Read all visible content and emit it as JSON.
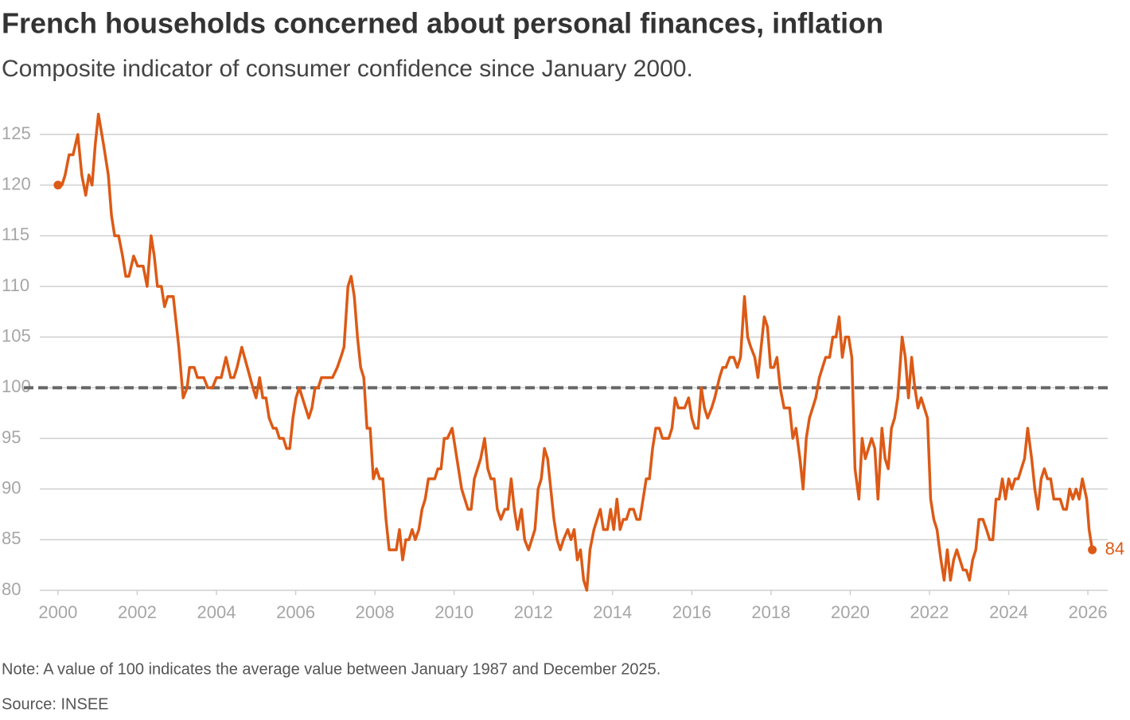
{
  "chart_data": {
    "type": "line",
    "title": "French households concerned about personal finances, inflation",
    "subtitle": "Composite indicator of consumer confidence since January 2000.",
    "note": "Note: A value of 100 indicates the average value between January 1987 and December 2025.",
    "source": "Source: INSEE",
    "reference_line": 100,
    "xlim": [
      1999.54,
      2026.5
    ],
    "xticks": [
      2000,
      2002,
      2004,
      2006,
      2008,
      2010,
      2012,
      2014,
      2016,
      2018,
      2020,
      2022,
      2024,
      2026
    ],
    "ylim": [
      80,
      125
    ],
    "yticks": [
      80,
      85,
      90,
      95,
      100,
      105,
      110,
      115,
      120,
      125
    ],
    "grid": true,
    "x": [
      2000,
      2000.1,
      2000.18,
      2000.28,
      2000.38,
      2000.5,
      2000.6,
      2000.7,
      2000.78,
      2000.86,
      2000.94,
      2001.02,
      2001.15,
      2001.27,
      2001.35,
      2001.43,
      2001.53,
      2001.63,
      2001.71,
      2001.79,
      2001.91,
      2002.01,
      2002.15,
      2002.25,
      2002.35,
      2002.43,
      2002.51,
      2002.61,
      2002.69,
      2002.77,
      2002.91,
      2003.05,
      2003.16,
      2003.26,
      2003.32,
      2003.44,
      2003.52,
      2003.68,
      2003.78,
      2003.9,
      2004,
      2004.12,
      2004.24,
      2004.36,
      2004.44,
      2004.52,
      2004.64,
      2004.78,
      2004.92,
      2005,
      2005.09,
      2005.17,
      2005.25,
      2005.33,
      2005.43,
      2005.51,
      2005.59,
      2005.69,
      2005.77,
      2005.85,
      2005.93,
      2006.01,
      2006.09,
      2006.17,
      2006.25,
      2006.33,
      2006.41,
      2006.49,
      2006.57,
      2006.65,
      2006.77,
      2006.93,
      2007.05,
      2007.14,
      2007.22,
      2007.32,
      2007.4,
      2007.48,
      2007.56,
      2007.64,
      2007.72,
      2007.8,
      2007.88,
      2007.96,
      2008.04,
      2008.12,
      2008.2,
      2008.28,
      2008.36,
      2008.54,
      2008.62,
      2008.7,
      2008.78,
      2008.86,
      2008.94,
      2009.02,
      2009.11,
      2009.19,
      2009.27,
      2009.35,
      2009.51,
      2009.59,
      2009.67,
      2009.75,
      2009.83,
      2009.95,
      2010.03,
      2010.11,
      2010.19,
      2010.27,
      2010.35,
      2010.43,
      2010.51,
      2010.59,
      2010.67,
      2010.77,
      2010.85,
      2010.93,
      2011.01,
      2011.09,
      2011.18,
      2011.28,
      2011.36,
      2011.44,
      2011.52,
      2011.6,
      2011.7,
      2011.78,
      2011.88,
      2011.96,
      2012.04,
      2012.12,
      2012.2,
      2012.28,
      2012.36,
      2012.44,
      2012.52,
      2012.6,
      2012.68,
      2012.76,
      2012.87,
      2012.95,
      2013.03,
      2013.11,
      2013.19,
      2013.27,
      2013.35,
      2013.43,
      2013.53,
      2013.61,
      2013.69,
      2013.77,
      2013.87,
      2013.95,
      2014.03,
      2014.11,
      2014.19,
      2014.27,
      2014.35,
      2014.43,
      2014.53,
      2014.61,
      2014.69,
      2014.77,
      2014.85,
      2014.93,
      2015.01,
      2015.09,
      2015.18,
      2015.26,
      2015.42,
      2015.5,
      2015.58,
      2015.66,
      2015.82,
      2015.92,
      2016,
      2016.08,
      2016.16,
      2016.24,
      2016.32,
      2016.4,
      2016.5,
      2016.58,
      2016.7,
      2016.78,
      2016.86,
      2016.96,
      2017.06,
      2017.15,
      2017.23,
      2017.33,
      2017.41,
      2017.49,
      2017.59,
      2017.67,
      2017.75,
      2017.83,
      2017.91,
      2017.99,
      2018.07,
      2018.15,
      2018.23,
      2018.33,
      2018.47,
      2018.55,
      2018.63,
      2018.73,
      2018.81,
      2018.89,
      2018.97,
      2019.05,
      2019.13,
      2019.22,
      2019.3,
      2019.38,
      2019.48,
      2019.56,
      2019.64,
      2019.72,
      2019.8,
      2019.88,
      2019.96,
      2020.04,
      2020.12,
      2020.22,
      2020.3,
      2020.38,
      2020.46,
      2020.54,
      2020.62,
      2020.7,
      2020.8,
      2020.88,
      2020.96,
      2021.04,
      2021.12,
      2021.2,
      2021.31,
      2021.39,
      2021.47,
      2021.55,
      2021.63,
      2021.71,
      2021.79,
      2021.87,
      2021.95,
      2022.03,
      2022.11,
      2022.19,
      2022.29,
      2022.37,
      2022.45,
      2022.53,
      2022.61,
      2022.69,
      2022.77,
      2022.85,
      2022.93,
      2023.01,
      2023.09,
      2023.17,
      2023.25,
      2023.35,
      2023.44,
      2023.52,
      2023.6,
      2023.68,
      2023.76,
      2023.84,
      2023.92,
      2024,
      2024.08,
      2024.16,
      2024.24,
      2024.32,
      2024.4,
      2024.48,
      2024.58,
      2024.66,
      2024.74,
      2024.82,
      2024.9,
      2024.98,
      2025.06,
      2025.14,
      2025.3,
      2025.38,
      2025.46,
      2025.54,
      2025.62,
      2025.7,
      2025.78,
      2025.86,
      2025.97,
      2026.03,
      2026.11
    ],
    "series": [
      {
        "color": "#dc5a16",
        "values": [
          120,
          120,
          121,
          123,
          123,
          125,
          121,
          119,
          121,
          120,
          124,
          127,
          124,
          121,
          117,
          115,
          115,
          113,
          111,
          111,
          113,
          112,
          112,
          110,
          115,
          113,
          110,
          110,
          108,
          109,
          109,
          104,
          99,
          100,
          102,
          102,
          101,
          101,
          100,
          100,
          101,
          101,
          103,
          101,
          101,
          102,
          104,
          102,
          100,
          99,
          101,
          99,
          99,
          97,
          96,
          96,
          95,
          95,
          94,
          94,
          97,
          99,
          100,
          99,
          98,
          97,
          98,
          100,
          100,
          101,
          101,
          101,
          102,
          103,
          104,
          110,
          111,
          109,
          105,
          102,
          101,
          96,
          96,
          91,
          92,
          91,
          91,
          87,
          84,
          84,
          86,
          83,
          85,
          85,
          86,
          85,
          86,
          88,
          89,
          91,
          91,
          92,
          92,
          95,
          95,
          96,
          94,
          92,
          90,
          89,
          88,
          88,
          91,
          92,
          93,
          95,
          92,
          91,
          91,
          88,
          87,
          88,
          88,
          91,
          88,
          86,
          88,
          85,
          84,
          85,
          86,
          90,
          91,
          94,
          93,
          90,
          87,
          85,
          84,
          85,
          86,
          85,
          86,
          83,
          84,
          81,
          80,
          84,
          86,
          87,
          88,
          86,
          86,
          88,
          86,
          89,
          86,
          87,
          87,
          88,
          88,
          87,
          87,
          89,
          91,
          91,
          94,
          96,
          96,
          95,
          95,
          96,
          99,
          98,
          98,
          99,
          97,
          96,
          96,
          100,
          98,
          97,
          98,
          99,
          101,
          102,
          102,
          103,
          103,
          102,
          103,
          109,
          105,
          104,
          103,
          101,
          104,
          107,
          106,
          102,
          102,
          103,
          100,
          98,
          98,
          95,
          96,
          93,
          90,
          95,
          97,
          98,
          99,
          101,
          102,
          103,
          103,
          105,
          105,
          107,
          103,
          105,
          105,
          103,
          92,
          89,
          95,
          93,
          94,
          95,
          94,
          89,
          96,
          93,
          92,
          96,
          97,
          99,
          105,
          103,
          99,
          103,
          100,
          98,
          99,
          98,
          97,
          89,
          87,
          86,
          83,
          81,
          84,
          81,
          83,
          84,
          83,
          82,
          82,
          81,
          83,
          84,
          87,
          87,
          86,
          85,
          85,
          89,
          89,
          91,
          89,
          91,
          90,
          91,
          91,
          92,
          93,
          96,
          93,
          90,
          88,
          91,
          92,
          91,
          91,
          89,
          89,
          88,
          88,
          90,
          89,
          90,
          89,
          91,
          89,
          86,
          84
        ]
      }
    ]
  }
}
